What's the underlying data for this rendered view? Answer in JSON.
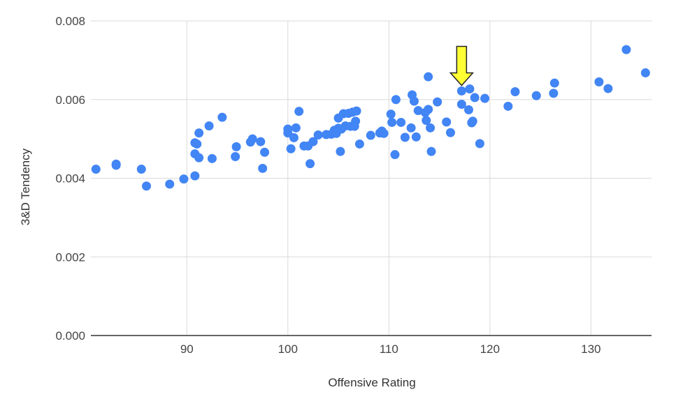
{
  "chart_data": {
    "type": "scatter",
    "title": "",
    "xlabel": "Offensive Rating",
    "ylabel": "3&D Tendency",
    "xlim": [
      80.5,
      136
    ],
    "ylim": [
      0,
      0.008
    ],
    "x_ticks": [
      90,
      100,
      110,
      120,
      130
    ],
    "y_ticks": [
      0.0,
      0.002,
      0.004,
      0.006,
      0.008
    ],
    "x_tick_labels": [
      "90",
      "100",
      "110",
      "120",
      "130"
    ],
    "y_tick_labels": [
      "0.000",
      "0.002",
      "0.004",
      "0.006",
      "0.008"
    ],
    "grid": true,
    "legend": "none",
    "point_color": "#4285f4",
    "annotation": {
      "type": "arrow",
      "color": "#ffff33",
      "points_to": [
        117.2,
        0.0062
      ]
    },
    "series": [
      {
        "points": [
          [
            81,
            0.00423
          ],
          [
            83,
            0.00433
          ],
          [
            83,
            0.00436
          ],
          [
            85.5,
            0.00423
          ],
          [
            86,
            0.0038
          ],
          [
            88.3,
            0.00385
          ],
          [
            89.7,
            0.00398
          ],
          [
            90.8,
            0.00406
          ],
          [
            90.8,
            0.00462
          ],
          [
            90.8,
            0.0049
          ],
          [
            91,
            0.00487
          ],
          [
            91.2,
            0.00452
          ],
          [
            91.2,
            0.00515
          ],
          [
            92.2,
            0.00533
          ],
          [
            92.5,
            0.0045
          ],
          [
            93.5,
            0.00555
          ],
          [
            94.8,
            0.00455
          ],
          [
            94.9,
            0.0048
          ],
          [
            96.3,
            0.00492
          ],
          [
            96.5,
            0.005
          ],
          [
            97.3,
            0.00493
          ],
          [
            97.5,
            0.00425
          ],
          [
            97.7,
            0.00466
          ],
          [
            100,
            0.00515
          ],
          [
            100,
            0.00525
          ],
          [
            100.3,
            0.00475
          ],
          [
            100.6,
            0.00503
          ],
          [
            100.8,
            0.00528
          ],
          [
            101.1,
            0.0057
          ],
          [
            101.6,
            0.00482
          ],
          [
            102,
            0.00482
          ],
          [
            102.2,
            0.00437
          ],
          [
            102.5,
            0.00493
          ],
          [
            103,
            0.0051
          ],
          [
            103.8,
            0.00511
          ],
          [
            104.3,
            0.00512
          ],
          [
            104.6,
            0.00522
          ],
          [
            104.8,
            0.00514
          ],
          [
            105,
            0.00527
          ],
          [
            105,
            0.00553
          ],
          [
            105.2,
            0.00468
          ],
          [
            105.3,
            0.00525
          ],
          [
            105.5,
            0.00564
          ],
          [
            105.7,
            0.00533
          ],
          [
            106,
            0.00565
          ],
          [
            106.2,
            0.00532
          ],
          [
            106.4,
            0.00568
          ],
          [
            106.6,
            0.00532
          ],
          [
            106.7,
            0.00545
          ],
          [
            106.8,
            0.00571
          ],
          [
            107.1,
            0.00487
          ],
          [
            108.2,
            0.00509
          ],
          [
            109.1,
            0.00515
          ],
          [
            109.3,
            0.0052
          ],
          [
            109.5,
            0.00514
          ],
          [
            110.2,
            0.00563
          ],
          [
            110.3,
            0.00542
          ],
          [
            110.6,
            0.0046
          ],
          [
            110.7,
            0.006
          ],
          [
            111.2,
            0.00542
          ],
          [
            111.6,
            0.00504
          ],
          [
            112.2,
            0.00528
          ],
          [
            112.3,
            0.00612
          ],
          [
            112.5,
            0.00596
          ],
          [
            112.7,
            0.00505
          ],
          [
            112.9,
            0.00572
          ],
          [
            113.6,
            0.00567
          ],
          [
            113.7,
            0.00547
          ],
          [
            113.9,
            0.00575
          ],
          [
            113.9,
            0.00658
          ],
          [
            114.1,
            0.00528
          ],
          [
            114.2,
            0.00468
          ],
          [
            114.8,
            0.00594
          ],
          [
            115.7,
            0.00543
          ],
          [
            116.1,
            0.00516
          ],
          [
            117.2,
            0.00622
          ],
          [
            117.2,
            0.00588
          ],
          [
            117.9,
            0.00574
          ],
          [
            118,
            0.00627
          ],
          [
            118.2,
            0.00541
          ],
          [
            118.3,
            0.00545
          ],
          [
            118.5,
            0.00605
          ],
          [
            119,
            0.00488
          ],
          [
            119.5,
            0.00603
          ],
          [
            121.8,
            0.00583
          ],
          [
            122.5,
            0.0062
          ],
          [
            124.6,
            0.0061
          ],
          [
            126.3,
            0.00616
          ],
          [
            126.4,
            0.00642
          ],
          [
            130.8,
            0.00645
          ],
          [
            131.7,
            0.00628
          ],
          [
            133.5,
            0.00727
          ],
          [
            135.4,
            0.00668
          ]
        ]
      }
    ]
  }
}
